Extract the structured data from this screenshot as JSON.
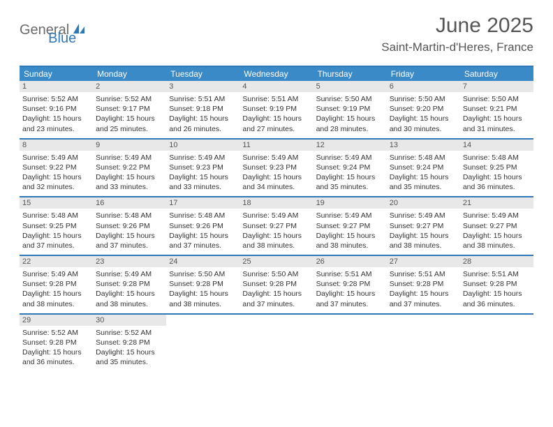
{
  "logo": {
    "part1": "General",
    "part2": "Blue"
  },
  "title": "June 2025",
  "location": "Saint-Martin-d'Heres, France",
  "daynames": [
    "Sunday",
    "Monday",
    "Tuesday",
    "Wednesday",
    "Thursday",
    "Friday",
    "Saturday"
  ],
  "colors": {
    "header_bar": "#3a8ac8",
    "rule": "#2f78b7",
    "daynum_bg": "#e8e8e8",
    "text": "#333333",
    "title_text": "#555555"
  },
  "days": [
    {
      "n": 1,
      "sunrise": "5:52 AM",
      "sunset": "9:16 PM",
      "daylight": "15 hours and 23 minutes."
    },
    {
      "n": 2,
      "sunrise": "5:52 AM",
      "sunset": "9:17 PM",
      "daylight": "15 hours and 25 minutes."
    },
    {
      "n": 3,
      "sunrise": "5:51 AM",
      "sunset": "9:18 PM",
      "daylight": "15 hours and 26 minutes."
    },
    {
      "n": 4,
      "sunrise": "5:51 AM",
      "sunset": "9:19 PM",
      "daylight": "15 hours and 27 minutes."
    },
    {
      "n": 5,
      "sunrise": "5:50 AM",
      "sunset": "9:19 PM",
      "daylight": "15 hours and 28 minutes."
    },
    {
      "n": 6,
      "sunrise": "5:50 AM",
      "sunset": "9:20 PM",
      "daylight": "15 hours and 30 minutes."
    },
    {
      "n": 7,
      "sunrise": "5:50 AM",
      "sunset": "9:21 PM",
      "daylight": "15 hours and 31 minutes."
    },
    {
      "n": 8,
      "sunrise": "5:49 AM",
      "sunset": "9:22 PM",
      "daylight": "15 hours and 32 minutes."
    },
    {
      "n": 9,
      "sunrise": "5:49 AM",
      "sunset": "9:22 PM",
      "daylight": "15 hours and 33 minutes."
    },
    {
      "n": 10,
      "sunrise": "5:49 AM",
      "sunset": "9:23 PM",
      "daylight": "15 hours and 33 minutes."
    },
    {
      "n": 11,
      "sunrise": "5:49 AM",
      "sunset": "9:23 PM",
      "daylight": "15 hours and 34 minutes."
    },
    {
      "n": 12,
      "sunrise": "5:49 AM",
      "sunset": "9:24 PM",
      "daylight": "15 hours and 35 minutes."
    },
    {
      "n": 13,
      "sunrise": "5:48 AM",
      "sunset": "9:24 PM",
      "daylight": "15 hours and 35 minutes."
    },
    {
      "n": 14,
      "sunrise": "5:48 AM",
      "sunset": "9:25 PM",
      "daylight": "15 hours and 36 minutes."
    },
    {
      "n": 15,
      "sunrise": "5:48 AM",
      "sunset": "9:25 PM",
      "daylight": "15 hours and 37 minutes."
    },
    {
      "n": 16,
      "sunrise": "5:48 AM",
      "sunset": "9:26 PM",
      "daylight": "15 hours and 37 minutes."
    },
    {
      "n": 17,
      "sunrise": "5:48 AM",
      "sunset": "9:26 PM",
      "daylight": "15 hours and 37 minutes."
    },
    {
      "n": 18,
      "sunrise": "5:49 AM",
      "sunset": "9:27 PM",
      "daylight": "15 hours and 38 minutes."
    },
    {
      "n": 19,
      "sunrise": "5:49 AM",
      "sunset": "9:27 PM",
      "daylight": "15 hours and 38 minutes."
    },
    {
      "n": 20,
      "sunrise": "5:49 AM",
      "sunset": "9:27 PM",
      "daylight": "15 hours and 38 minutes."
    },
    {
      "n": 21,
      "sunrise": "5:49 AM",
      "sunset": "9:27 PM",
      "daylight": "15 hours and 38 minutes."
    },
    {
      "n": 22,
      "sunrise": "5:49 AM",
      "sunset": "9:28 PM",
      "daylight": "15 hours and 38 minutes."
    },
    {
      "n": 23,
      "sunrise": "5:49 AM",
      "sunset": "9:28 PM",
      "daylight": "15 hours and 38 minutes."
    },
    {
      "n": 24,
      "sunrise": "5:50 AM",
      "sunset": "9:28 PM",
      "daylight": "15 hours and 38 minutes."
    },
    {
      "n": 25,
      "sunrise": "5:50 AM",
      "sunset": "9:28 PM",
      "daylight": "15 hours and 37 minutes."
    },
    {
      "n": 26,
      "sunrise": "5:51 AM",
      "sunset": "9:28 PM",
      "daylight": "15 hours and 37 minutes."
    },
    {
      "n": 27,
      "sunrise": "5:51 AM",
      "sunset": "9:28 PM",
      "daylight": "15 hours and 37 minutes."
    },
    {
      "n": 28,
      "sunrise": "5:51 AM",
      "sunset": "9:28 PM",
      "daylight": "15 hours and 36 minutes."
    },
    {
      "n": 29,
      "sunrise": "5:52 AM",
      "sunset": "9:28 PM",
      "daylight": "15 hours and 36 minutes."
    },
    {
      "n": 30,
      "sunrise": "5:52 AM",
      "sunset": "9:28 PM",
      "daylight": "15 hours and 35 minutes."
    }
  ],
  "labels": {
    "sunrise_prefix": "Sunrise: ",
    "sunset_prefix": "Sunset: ",
    "daylight_prefix": "Daylight: "
  }
}
